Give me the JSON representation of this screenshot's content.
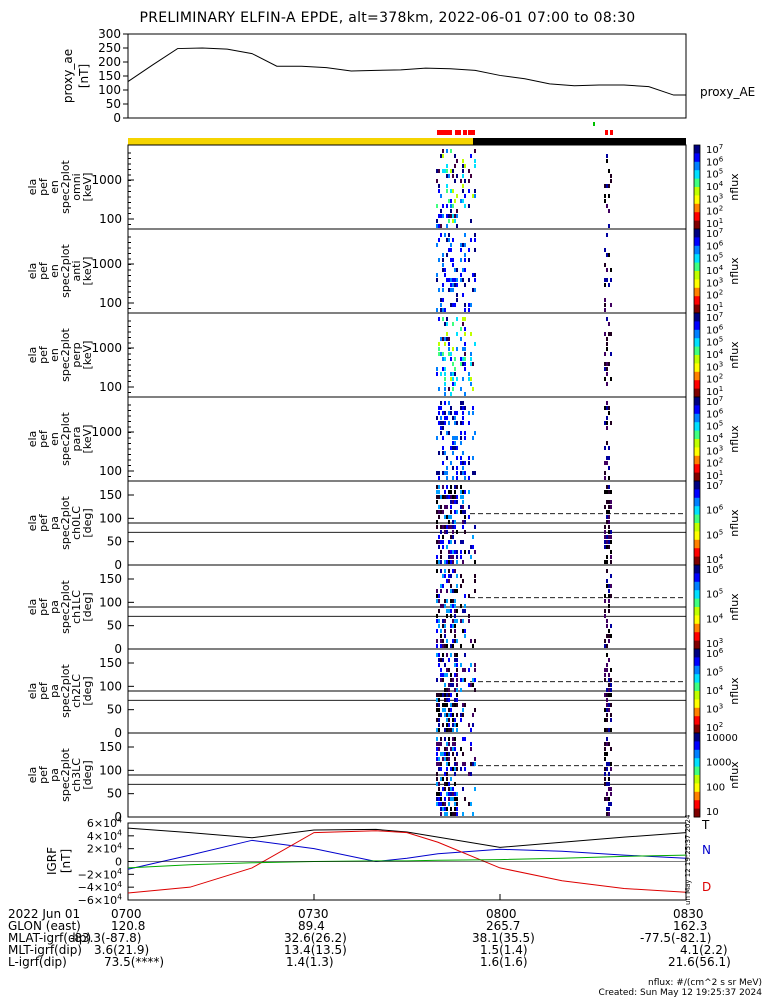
{
  "title": "PRELIMINARY ELFIN-A EPDE, alt=378km, 2022-06-01 07:00 to 08:30",
  "time_ticks": [
    "0700",
    "0730",
    "0800",
    "0830"
  ],
  "chart_data": [
    {
      "type": "line",
      "id": "proxy_ae",
      "ylabel": [
        "proxy_ae",
        "[nT]"
      ],
      "legend": "proxy_AE",
      "ylim": [
        0,
        300
      ],
      "yticks": [
        "0",
        "50",
        "100",
        "150",
        "200",
        "250",
        "300"
      ],
      "x_minutes": [
        0,
        4,
        8,
        12,
        16,
        20,
        24,
        28,
        32,
        36,
        40,
        44,
        48,
        52,
        56,
        60,
        64,
        68,
        72,
        76,
        80,
        84,
        88,
        90
      ],
      "values": [
        130,
        190,
        248,
        250,
        246,
        230,
        185,
        185,
        180,
        168,
        170,
        172,
        178,
        176,
        170,
        152,
        140,
        122,
        115,
        118,
        118,
        112,
        82,
        82
      ]
    },
    {
      "type": "spectrogram",
      "id": "spec-omni",
      "ylabel": [
        "ela",
        "pef",
        "en",
        "spec2plot",
        "omni",
        "[keV]"
      ],
      "yticks": [
        "100",
        "1000"
      ],
      "colorbar": {
        "label": "nflux",
        "labels": [
          "10^7",
          "10^6",
          "10^5",
          "10^4",
          "10^3",
          "10^2",
          "10^1"
        ]
      }
    },
    {
      "type": "spectrogram",
      "id": "spec-anti",
      "ylabel": [
        "ela",
        "pef",
        "en",
        "spec2plot",
        "anti",
        "[keV]"
      ],
      "yticks": [
        "100",
        "1000"
      ],
      "colorbar": {
        "label": "nflux",
        "labels": [
          "10^7",
          "10^6",
          "10^5",
          "10^4",
          "10^3",
          "10^2",
          "10^1"
        ]
      }
    },
    {
      "type": "spectrogram",
      "id": "spec-perp",
      "ylabel": [
        "ela",
        "pef",
        "en",
        "spec2plot",
        "perp",
        "[keV]"
      ],
      "yticks": [
        "100",
        "1000"
      ],
      "colorbar": {
        "label": "nflux",
        "labels": [
          "10^7",
          "10^6",
          "10^5",
          "10^4",
          "10^3",
          "10^2",
          "10^1"
        ]
      }
    },
    {
      "type": "spectrogram",
      "id": "spec-para",
      "ylabel": [
        "ela",
        "pef",
        "en",
        "spec2plot",
        "para",
        "[keV]"
      ],
      "yticks": [
        "100",
        "1000"
      ],
      "colorbar": {
        "label": "nflux",
        "labels": [
          "10^7",
          "10^6",
          "10^5",
          "10^4",
          "10^3",
          "10^2",
          "10^1"
        ]
      }
    },
    {
      "type": "spectrogram",
      "id": "spec-ch0",
      "ylabel": [
        "ela",
        "pef",
        "pa",
        "spec2plot",
        "ch0LC",
        "[deg]"
      ],
      "yticks": [
        "0",
        "50",
        "100",
        "150"
      ],
      "colorbar": {
        "label": "nflux",
        "labels": [
          "10^7",
          "10^6",
          "10^5",
          "10^4"
        ]
      }
    },
    {
      "type": "spectrogram",
      "id": "spec-ch1",
      "ylabel": [
        "ela",
        "pef",
        "pa",
        "spec2plot",
        "ch1LC",
        "[deg]"
      ],
      "yticks": [
        "0",
        "50",
        "100",
        "150"
      ],
      "colorbar": {
        "label": "nflux",
        "labels": [
          "10^6",
          "10^5",
          "10^4",
          "10^3"
        ]
      }
    },
    {
      "type": "spectrogram",
      "id": "spec-ch2",
      "ylabel": [
        "ela",
        "pef",
        "pa",
        "spec2plot",
        "ch2LC",
        "[deg]"
      ],
      "yticks": [
        "0",
        "50",
        "100",
        "150"
      ],
      "colorbar": {
        "label": "nflux",
        "labels": [
          "10^6",
          "10^5",
          "10^4",
          "10^3",
          "10^2"
        ]
      }
    },
    {
      "type": "spectrogram",
      "id": "spec-ch3",
      "ylabel": [
        "ela",
        "pef",
        "pa",
        "spec2plot",
        "ch3LC",
        "[deg]"
      ],
      "yticks": [
        "0",
        "50",
        "100",
        "150"
      ],
      "colorbar": {
        "label": "nflux",
        "labels": [
          "10000",
          "1000",
          "100",
          "10"
        ]
      }
    },
    {
      "type": "line",
      "id": "igrf",
      "ylabel": [
        "IGRF",
        "[nT]"
      ],
      "yticks": [
        "6×10^4",
        "4×10^4",
        "2×10^4",
        "0",
        "−2×10^4",
        "−4×10^4",
        "−6×10^4"
      ],
      "ylim": [
        -60000,
        60000
      ],
      "x_minutes": [
        0,
        10,
        20,
        30,
        40,
        45,
        50,
        60,
        70,
        80,
        90
      ],
      "series": [
        {
          "name": "T",
          "color": "#000000",
          "values": [
            52000,
            45000,
            37000,
            49000,
            50000,
            46000,
            38000,
            22000,
            30000,
            38000,
            45000
          ]
        },
        {
          "name": "N",
          "color": "#0000cc",
          "values": [
            -12000,
            10000,
            33000,
            20000,
            0,
            5000,
            12000,
            19000,
            16000,
            10000,
            5000
          ]
        },
        {
          "name": "D",
          "color": "#dd0000",
          "values": [
            -49000,
            -40000,
            -10000,
            45000,
            48000,
            45000,
            30000,
            -10000,
            -30000,
            -42000,
            -48000
          ]
        },
        {
          "name": "",
          "color": "#00aa00",
          "values": [
            -10000,
            -5000,
            -2000,
            0,
            1000,
            1000,
            2000,
            3000,
            5000,
            8000,
            10000
          ]
        }
      ],
      "legend": [
        "T",
        "N",
        "D"
      ]
    }
  ],
  "footer": {
    "rows": [
      {
        "label": "2022 Jun 01",
        "values": [
          "0700",
          "0730",
          "0800",
          "0830"
        ]
      },
      {
        "label": "GLON (east)",
        "values": [
          "120.8",
          "89.4",
          "265.7",
          "162.3"
        ]
      },
      {
        "label": "MLAT-igrf(dip)",
        "values": [
          "-83.3(-87.8)",
          "32.6(26.2)",
          "38.1(35.5)",
          "-77.5(-82.1)"
        ]
      },
      {
        "label": "MLT-igrf(dip)",
        "values": [
          "3.6(21.9)",
          "13.4(13.5)",
          "1.5(1.4)",
          "4.1(2.2)"
        ]
      },
      {
        "label": "L-igrf(dip)",
        "values": [
          "73.5(****)",
          "1.4(1.3)",
          "1.6(1.6)",
          "21.6(56.1)"
        ]
      }
    ],
    "units_note": "nflux: #/(cm^2 s sr MeV)",
    "created": "Created: Sun May 12 19:25:37 2024",
    "side_stamp": "Sun May 12 19:25:37 2024"
  },
  "colors": {
    "state_bar_yellow": "#f5d400",
    "state_bar_black": "#000000",
    "marker_red": "#ff0000",
    "marker_green": "#00c000"
  }
}
